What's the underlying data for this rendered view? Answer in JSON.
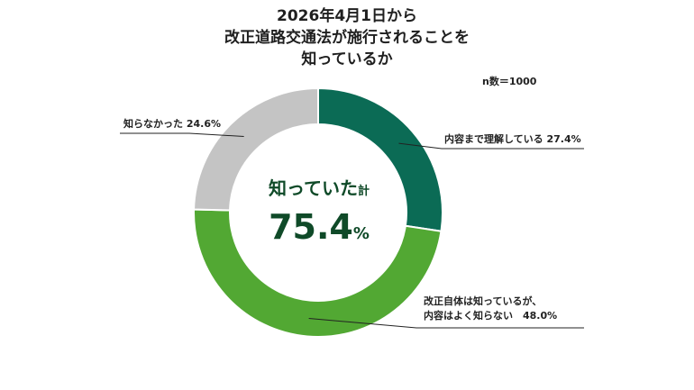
{
  "header": {
    "title_lines": [
      "2026年4月1日から",
      "改正道路交通法が施行されることを",
      "知っているか"
    ],
    "sample_size": "n数＝1000"
  },
  "center": {
    "caption_main": "知っていた",
    "caption_suffix": "計",
    "value": "75.4",
    "unit": "%"
  },
  "colors": {
    "dark_green": "#0b6b55",
    "green": "#52a833",
    "gray": "#c4c4c4",
    "text_green": "#0f4a28"
  },
  "chart_data": {
    "type": "pie",
    "variant": "donut",
    "sample_size": "n数＝1000",
    "title": "2026年4月1日から改正道路交通法が施行されることを知っているか",
    "categories": [
      "内容まで理解している",
      "改正自体は知っているが、内容はよく知らない",
      "知らなかった"
    ],
    "values": [
      27.4,
      48.0,
      24.6
    ],
    "unit": "%",
    "center_total": 75.4,
    "labels": [
      [
        "内容まで理解している 27.4%"
      ],
      [
        "改正自体は知っているが、",
        "内容はよく知らない　48.0%"
      ],
      [
        "知らなかった 24.6%"
      ]
    ]
  }
}
